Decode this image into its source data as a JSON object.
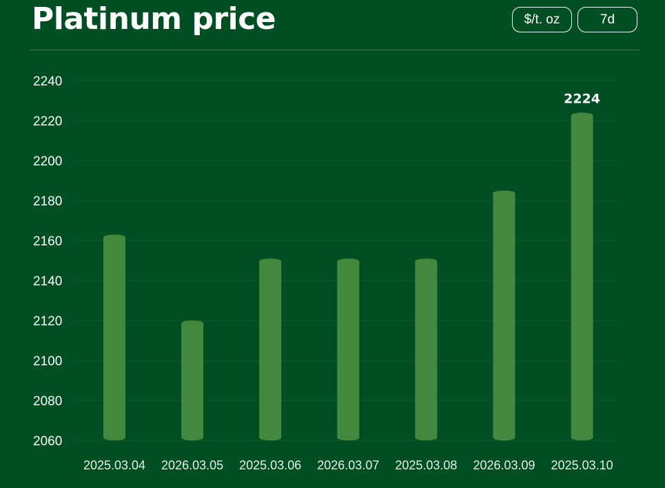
{
  "header": {
    "title": "Platinum price",
    "unit_label": "$/t. oz",
    "range_label": "7d"
  },
  "colors": {
    "background": "#004f23",
    "bar": "#448840",
    "grid": "#0f5a2c"
  },
  "chart_data": {
    "type": "bar",
    "title": "Platinum price",
    "categories": [
      "2025.03.04",
      "2026.03.05",
      "2025.03.06",
      "2026.03.07",
      "2025.03.08",
      "2026.03.09",
      "2025.03.10"
    ],
    "values": [
      2163,
      2120,
      2151,
      2151,
      2151,
      2185,
      2224
    ],
    "data_labels": [
      {
        "index": 6,
        "text": "2224"
      }
    ],
    "yticks": [
      "2060",
      "2080",
      "2100",
      "2120",
      "2140",
      "2160",
      "2180",
      "2200",
      "2220",
      "2240"
    ],
    "ylim": [
      2060,
      2240
    ],
    "xlabel": "",
    "ylabel": "",
    "grid": true,
    "legend": "none"
  }
}
